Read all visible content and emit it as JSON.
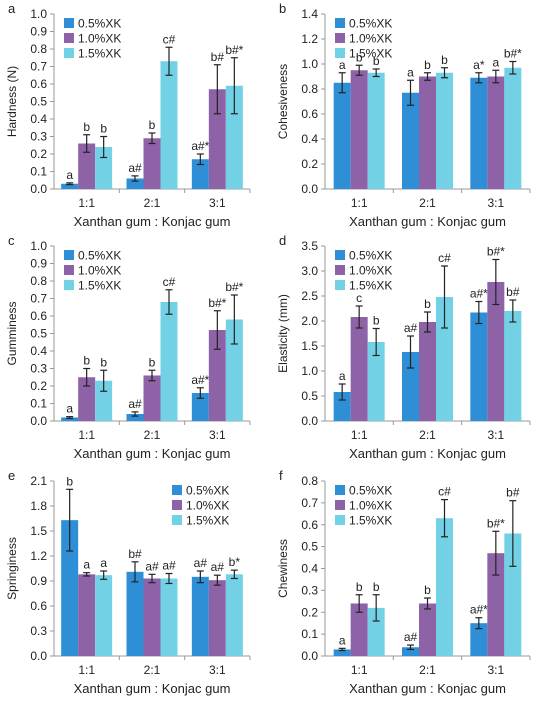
{
  "colors": {
    "s1": "#2E8FD6",
    "s2": "#8E62A6",
    "s3": "#73D1E6",
    "axis": "#9A9A9A",
    "text": "#222222",
    "error": "#222222"
  },
  "chart_data": [
    {
      "type": "bar",
      "panel_label": "a",
      "ylabel": "Hardness (N)",
      "xlabel": "Xanthan gum : Konjac gum",
      "categories": [
        "1:1",
        "2:1",
        "3:1"
      ],
      "ylim": [
        0,
        1.0
      ],
      "yticks": [
        0,
        0.1,
        0.2,
        0.3,
        0.4,
        0.5,
        0.6,
        0.7,
        0.8,
        0.9,
        1.0
      ],
      "ytick_labels": [
        "0.0",
        "0.1",
        "0.2",
        "0.3",
        "0.4",
        "0.5",
        "0.6",
        "0.7",
        "0.8",
        "0.9",
        "1.0"
      ],
      "legend": "top-left",
      "series": [
        {
          "name": "0.5%XK",
          "values": [
            0.03,
            0.06,
            0.17
          ],
          "errors": [
            0.005,
            0.015,
            0.03
          ],
          "labels": [
            "a",
            "a#",
            "a#*"
          ]
        },
        {
          "name": "1.0%XK",
          "values": [
            0.26,
            0.29,
            0.57
          ],
          "errors": [
            0.05,
            0.03,
            0.14
          ],
          "labels": [
            "b",
            "b",
            "b#"
          ]
        },
        {
          "name": "1.5%XK",
          "values": [
            0.24,
            0.73,
            0.59
          ],
          "errors": [
            0.06,
            0.08,
            0.16
          ],
          "labels": [
            "b",
            "c#",
            "b#*"
          ]
        }
      ]
    },
    {
      "type": "bar",
      "panel_label": "b",
      "ylabel": "Cohesiveness",
      "xlabel": "Xanthan gum : Konjac gum",
      "categories": [
        "1:1",
        "2:1",
        "3:1"
      ],
      "ylim": [
        0,
        1.4
      ],
      "yticks": [
        0,
        0.2,
        0.4,
        0.6,
        0.8,
        1.0,
        1.2,
        1.4
      ],
      "ytick_labels": [
        "0.0",
        "0.2",
        "0.4",
        "0.6",
        "0.8",
        "1.0",
        "1.2",
        "1.4"
      ],
      "legend": "top-left",
      "series": [
        {
          "name": "0.5%XK",
          "values": [
            0.85,
            0.77,
            0.89
          ],
          "errors": [
            0.08,
            0.1,
            0.04
          ],
          "labels": [
            "a",
            "a",
            "a*"
          ]
        },
        {
          "name": "1.0%XK",
          "values": [
            0.95,
            0.9,
            0.9
          ],
          "errors": [
            0.04,
            0.03,
            0.05
          ],
          "labels": [
            "b",
            "b",
            "a"
          ]
        },
        {
          "name": "1.5%XK",
          "values": [
            0.93,
            0.93,
            0.97
          ],
          "errors": [
            0.03,
            0.04,
            0.05
          ],
          "labels": [
            "b",
            "b",
            "b#*"
          ]
        }
      ]
    },
    {
      "type": "bar",
      "panel_label": "c",
      "ylabel": "Gumminess",
      "xlabel": "Xanthan gum : Konjac gum",
      "categories": [
        "1:1",
        "2:1",
        "3:1"
      ],
      "ylim": [
        0,
        1.0
      ],
      "yticks": [
        0,
        0.1,
        0.2,
        0.3,
        0.4,
        0.5,
        0.6,
        0.7,
        0.8,
        0.9,
        1.0
      ],
      "ytick_labels": [
        "0.0",
        "0.1",
        "0.2",
        "0.3",
        "0.4",
        "0.5",
        "0.6",
        "0.7",
        "0.8",
        "0.9",
        "1.0"
      ],
      "legend": "top-left",
      "series": [
        {
          "name": "0.5%XK",
          "values": [
            0.02,
            0.04,
            0.16
          ],
          "errors": [
            0.005,
            0.012,
            0.03
          ],
          "labels": [
            "a",
            "a#",
            "a#*"
          ]
        },
        {
          "name": "1.0%XK",
          "values": [
            0.25,
            0.26,
            0.52
          ],
          "errors": [
            0.05,
            0.03,
            0.11
          ],
          "labels": [
            "b",
            "b",
            "b#*"
          ]
        },
        {
          "name": "1.5%XK",
          "values": [
            0.23,
            0.68,
            0.58
          ],
          "errors": [
            0.06,
            0.07,
            0.14
          ],
          "labels": [
            "b",
            "c#",
            "b#*"
          ]
        }
      ]
    },
    {
      "type": "bar",
      "panel_label": "d",
      "ylabel": "Elasticity (mm)",
      "xlabel": "Xanthan gum : Konjac gum",
      "categories": [
        "1:1",
        "2:1",
        "3:1"
      ],
      "ylim": [
        0,
        3.5
      ],
      "yticks": [
        0,
        0.5,
        1.0,
        1.5,
        2.0,
        2.5,
        3.0,
        3.5
      ],
      "ytick_labels": [
        "0.0",
        "0.5",
        "1.0",
        "1.5",
        "2.0",
        "2.5",
        "3.0",
        "3.5"
      ],
      "legend": "top-left",
      "series": [
        {
          "name": "0.5%XK",
          "values": [
            0.58,
            1.38,
            2.17
          ],
          "errors": [
            0.16,
            0.32,
            0.22
          ],
          "labels": [
            "a",
            "a#",
            "a#*"
          ]
        },
        {
          "name": "1.0%XK",
          "values": [
            2.08,
            1.98,
            2.78
          ],
          "errors": [
            0.22,
            0.2,
            0.45
          ],
          "labels": [
            "c",
            "b",
            "b#*"
          ]
        },
        {
          "name": "1.5%XK",
          "values": [
            1.58,
            2.48,
            2.2
          ],
          "errors": [
            0.27,
            0.62,
            0.22
          ],
          "labels": [
            "b",
            "c#",
            "b#"
          ]
        }
      ]
    },
    {
      "type": "bar",
      "panel_label": "e",
      "ylabel": "Springiness",
      "xlabel": "Xanthan gum : Konjac gum",
      "categories": [
        "1:1",
        "2:1",
        "3:1"
      ],
      "ylim": [
        0,
        2.1
      ],
      "yticks": [
        0,
        0.3,
        0.6,
        0.9,
        1.2,
        1.5,
        1.8,
        2.1
      ],
      "ytick_labels": [
        "0.0",
        "0.3",
        "0.6",
        "0.9",
        "1.2",
        "1.5",
        "1.8",
        "2.1"
      ],
      "legend": "top-right",
      "series": [
        {
          "name": "0.5%XK",
          "values": [
            1.63,
            1.01,
            0.95
          ],
          "errors": [
            0.37,
            0.12,
            0.07
          ],
          "labels": [
            "b",
            "b#",
            "a#"
          ]
        },
        {
          "name": "1.0%XK",
          "values": [
            0.98,
            0.93,
            0.91
          ],
          "errors": [
            0.02,
            0.05,
            0.06
          ],
          "labels": [
            "a",
            "a#",
            "a#"
          ]
        },
        {
          "name": "1.5%XK",
          "values": [
            0.97,
            0.93,
            0.98
          ],
          "errors": [
            0.05,
            0.06,
            0.05
          ],
          "labels": [
            "a",
            "a#",
            "b*"
          ]
        }
      ]
    },
    {
      "type": "bar",
      "panel_label": "f",
      "ylabel": "Chewiness",
      "xlabel": "Xanthan gum : Konjac gum",
      "categories": [
        "1:1",
        "2:1",
        "3:1"
      ],
      "ylim": [
        0,
        0.8
      ],
      "yticks": [
        0,
        0.1,
        0.2,
        0.3,
        0.4,
        0.5,
        0.6,
        0.7,
        0.8
      ],
      "ytick_labels": [
        "0.0",
        "0.1",
        "0.2",
        "0.3",
        "0.4",
        "0.5",
        "0.6",
        "0.7",
        "0.8"
      ],
      "legend": "top-left",
      "series": [
        {
          "name": "0.5%XK",
          "values": [
            0.03,
            0.04,
            0.15
          ],
          "errors": [
            0.005,
            0.01,
            0.025
          ],
          "labels": [
            "a",
            "a#",
            "a#*"
          ]
        },
        {
          "name": "1.0%XK",
          "values": [
            0.24,
            0.24,
            0.47
          ],
          "errors": [
            0.04,
            0.025,
            0.1
          ],
          "labels": [
            "b",
            "b",
            "b#*"
          ]
        },
        {
          "name": "1.5%XK",
          "values": [
            0.22,
            0.63,
            0.56
          ],
          "errors": [
            0.06,
            0.085,
            0.15
          ],
          "labels": [
            "b",
            "c#",
            "b#"
          ]
        }
      ]
    }
  ]
}
